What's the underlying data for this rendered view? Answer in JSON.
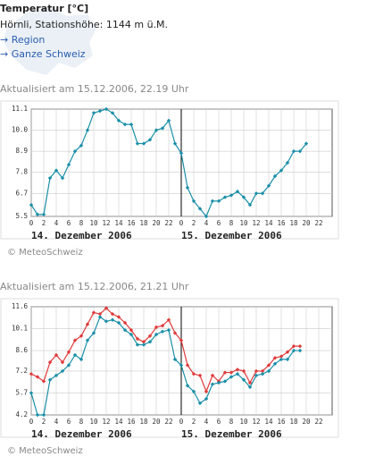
{
  "header": {
    "title": "Temperatur [°C]",
    "station": "Hörnli, Stationshöhe: 1144 m ü.M.",
    "links": [
      "→ Region",
      "→ Ganze Schweiz"
    ]
  },
  "chart_data": [
    {
      "type": "line",
      "updated": "Aktualisiert am 15.12.2006, 22.19 Uhr",
      "categories": [
        "0",
        null,
        "2",
        null,
        "4",
        null,
        "6",
        null,
        "8",
        null,
        "10",
        null,
        "12",
        null,
        "14",
        null,
        "16",
        null,
        "18",
        null,
        "20",
        null,
        "22",
        null,
        "0",
        null,
        "2",
        null,
        "4",
        null,
        "6",
        null,
        "8",
        null,
        "10",
        null,
        "12",
        null,
        "14",
        null,
        "16",
        null,
        "18",
        null,
        "20",
        null,
        "22",
        null
      ],
      "values": [
        6.1,
        5.6,
        5.6,
        7.5,
        7.9,
        7.5,
        8.2,
        8.9,
        9.2,
        10.0,
        10.9,
        11.0,
        11.1,
        10.9,
        10.5,
        10.3,
        10.3,
        9.3,
        9.3,
        9.5,
        10.0,
        10.1,
        10.5,
        9.3,
        8.8,
        7.0,
        6.3,
        5.9,
        5.5,
        6.3,
        6.3,
        6.5,
        6.6,
        6.8,
        6.5,
        6.1,
        6.7,
        6.7,
        7.1,
        7.6,
        7.9,
        8.3,
        8.9,
        8.9,
        9.3,
        null,
        null,
        null
      ],
      "color": "#1a8fa8",
      "ylim": [
        5.5,
        11.1
      ],
      "yticks": [
        5.5,
        6.7,
        7.8,
        8.9,
        {
          "value": 10,
          "label": "10.0"
        },
        11.1
      ],
      "grid": true,
      "day_labels": [
        "14. Dezember 2006",
        "15. Dezember 2006"
      ],
      "credit": "© MeteoSchweiz"
    },
    {
      "type": "line",
      "updated": "Aktualisiert am 15.12.2006, 21.21 Uhr",
      "categories": [
        "0",
        null,
        "2",
        null,
        "4",
        null,
        "6",
        null,
        "8",
        null,
        "10",
        null,
        "12",
        null,
        "14",
        null,
        "16",
        null,
        "18",
        null,
        "20",
        null,
        "22",
        null,
        "0",
        null,
        "2",
        null,
        "4",
        null,
        "6",
        null,
        "8",
        null,
        "10",
        null,
        "12",
        null,
        "14",
        null,
        "16",
        null,
        "18",
        null,
        "20",
        null,
        "22",
        null
      ],
      "series": [
        {
          "color": "#e03a3a",
          "values": [
            7.0,
            6.8,
            6.5,
            7.8,
            8.3,
            7.8,
            8.5,
            9.3,
            9.6,
            10.4,
            11.2,
            11.1,
            11.5,
            11.1,
            10.9,
            10.5,
            10.0,
            9.4,
            9.2,
            9.6,
            10.2,
            10.3,
            10.7,
            9.8,
            9.3,
            7.6,
            7.0,
            6.9,
            5.8,
            6.9,
            6.5,
            7.1,
            7.1,
            7.3,
            7.2,
            6.4,
            7.2,
            7.2,
            7.6,
            8.1,
            8.2,
            8.5,
            8.9,
            8.9,
            null,
            null,
            null,
            null
          ]
        },
        {
          "color": "#1a8fa8",
          "values": [
            5.7,
            4.2,
            4.2,
            6.6,
            6.9,
            7.2,
            7.6,
            8.3,
            8.0,
            9.3,
            9.8,
            10.9,
            10.6,
            10.7,
            10.5,
            10.0,
            9.7,
            9.0,
            9.0,
            9.2,
            9.7,
            9.9,
            10.0,
            8.0,
            7.6,
            6.2,
            5.8,
            5.0,
            5.3,
            6.3,
            6.4,
            6.5,
            6.8,
            7.0,
            6.6,
            6.1,
            6.9,
            7.0,
            7.2,
            7.7,
            8.0,
            8.0,
            8.6,
            8.6,
            null,
            null,
            null,
            null
          ]
        }
      ],
      "ylim": [
        4.2,
        11.6
      ],
      "yticks": [
        4.2,
        5.7,
        7.2,
        8.6,
        10.1,
        11.6
      ],
      "grid": true,
      "day_labels": [
        "14. Dezember 2006",
        "15. Dezember 2006"
      ],
      "credit": "© MeteoSchweiz"
    }
  ]
}
